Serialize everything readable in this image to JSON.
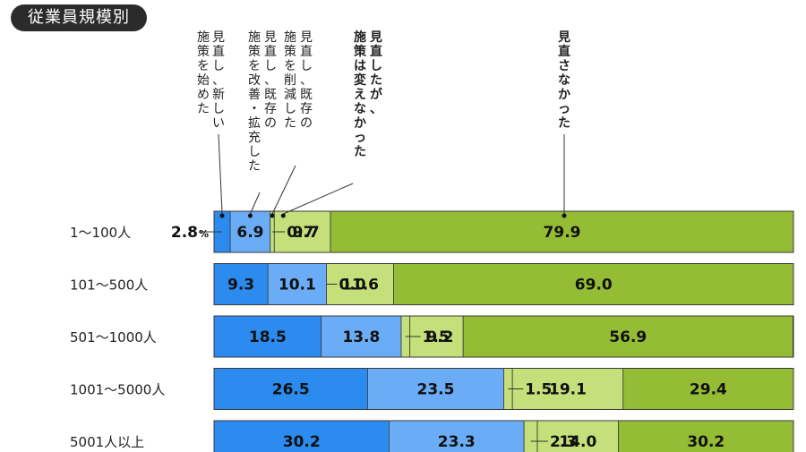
{
  "badge": "従業員規模別",
  "chart_data": {
    "type": "bar",
    "orientation": "horizontal",
    "stacked": true,
    "percent_unit": "%",
    "categories": [
      "1〜100人",
      "101〜500人",
      "501〜1000人",
      "1001〜5000人",
      "5001人以上"
    ],
    "series": [
      {
        "name": "見直し、新しい施策を始めた",
        "color": "#2c8bef",
        "values": [
          2.8,
          9.3,
          18.5,
          26.5,
          30.2
        ]
      },
      {
        "name": "見直し、既存の施策を改善・拡充した",
        "color": "#6aadf6",
        "values": [
          6.9,
          10.1,
          13.8,
          23.5,
          23.3
        ]
      },
      {
        "name": "見直し、既存の施策を削減した",
        "color": "#c5e07a",
        "values": [
          0.7,
          0.0,
          1.5,
          1.5,
          2.3
        ]
      },
      {
        "name": "見直したが、施策は変えなかった",
        "color": "#c5e07a",
        "values": [
          9.7,
          11.6,
          9.2,
          19.1,
          14.0
        ]
      },
      {
        "name": "見直さなかった",
        "color": "#95bc35",
        "values": [
          79.9,
          69.0,
          56.9,
          29.4,
          30.2
        ]
      }
    ],
    "series_label_lines": [
      [
        "見直し、新しい",
        "施策を始めた"
      ],
      [
        "見直し、既存の",
        "施策を改善・拡充した"
      ],
      [
        "見直し、既存の",
        "施策を削減した"
      ],
      [
        "見直したが、",
        "施策は変えなかった"
      ],
      [
        "見直さなかった"
      ]
    ],
    "bold_label_series": [
      3,
      4
    ],
    "xlim": [
      0,
      100
    ],
    "legend": "top-callouts",
    "grid": false
  }
}
